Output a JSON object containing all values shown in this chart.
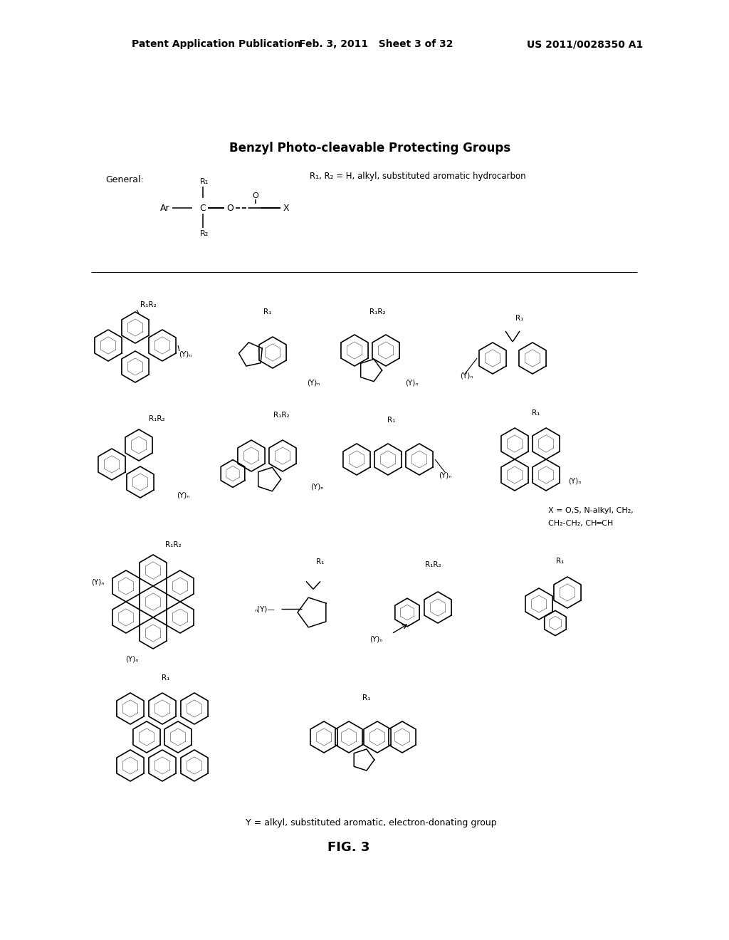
{
  "bg": "#ffffff",
  "header_left": "Patent Application Publication",
  "header_mid": "Feb. 3, 2011   Sheet 3 of 32",
  "header_right": "US 2011/0028350 A1",
  "section_title": "Benzyl Photo-cleavable Protecting Groups",
  "general_label": "General:",
  "r1r2_text": "R₁, R₂ = H, alkyl, substituted aromatic hydrocarbon",
  "x_eq_line1": "X = O,S, N-alkyl, CH₂,",
  "x_eq_line2": "CH₂-CH₂, CH═CH",
  "y_eq": "Y = alkyl, substituted aromatic, electron-donating group",
  "fig_caption": "FIG. 3",
  "figsize": [
    10.24,
    13.2
  ],
  "dpi": 100
}
